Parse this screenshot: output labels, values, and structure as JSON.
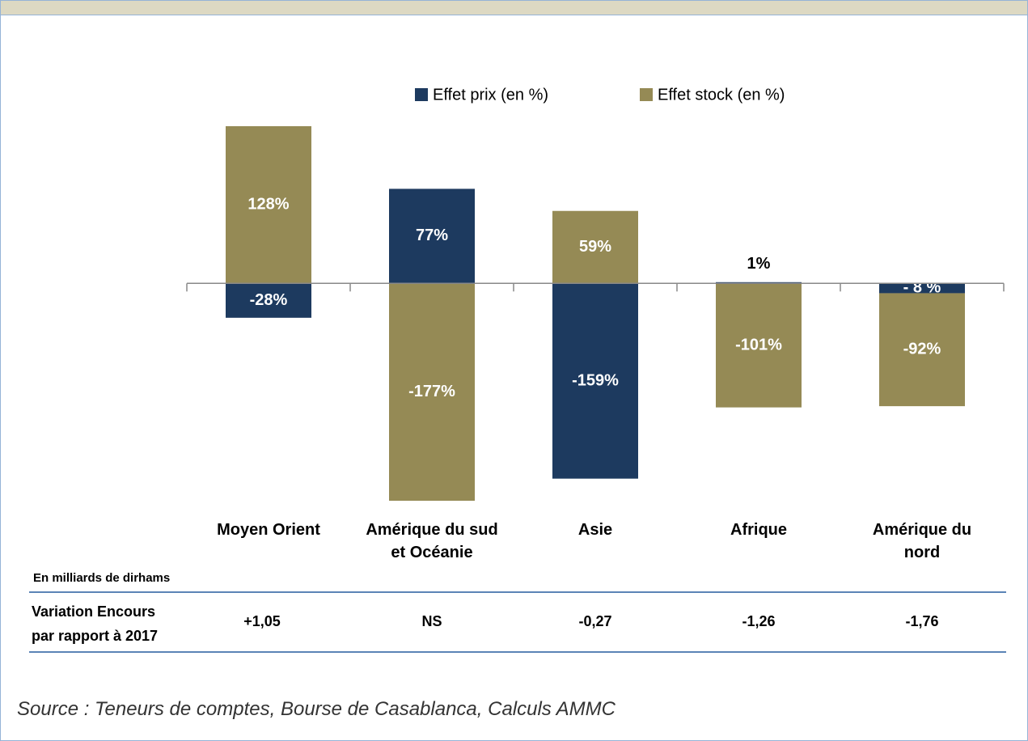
{
  "chart_data": {
    "type": "bar",
    "stacked": true,
    "categories": [
      "Moyen Orient",
      "Amérique du sud\net Océanie",
      "Asie",
      "Afrique",
      "Amérique du\nnord"
    ],
    "series": [
      {
        "name": "Effet prix (en %)",
        "color": "#1d3a5f",
        "values": [
          -28,
          77,
          -159,
          1,
          -8
        ],
        "value_labels": [
          "-28%",
          "77%",
          "-159%",
          "1%",
          "- 8 %"
        ]
      },
      {
        "name": "Effet stock (en %)",
        "color": "#958a55",
        "values": [
          128,
          -177,
          59,
          -101,
          -92
        ],
        "value_labels": [
          "128%",
          "-177%",
          "59%",
          "-101%",
          "-92%"
        ]
      }
    ]
  },
  "table": {
    "unit": "En milliards de dirhams",
    "row_label": "Variation Encours\npar rapport à 2017",
    "values": [
      "+1,05",
      "NS",
      "-0,27",
      "-1,26",
      "-1,76"
    ]
  },
  "source": "Source : Teneurs de comptes, Bourse de Casablanca, Calculs AMMC"
}
